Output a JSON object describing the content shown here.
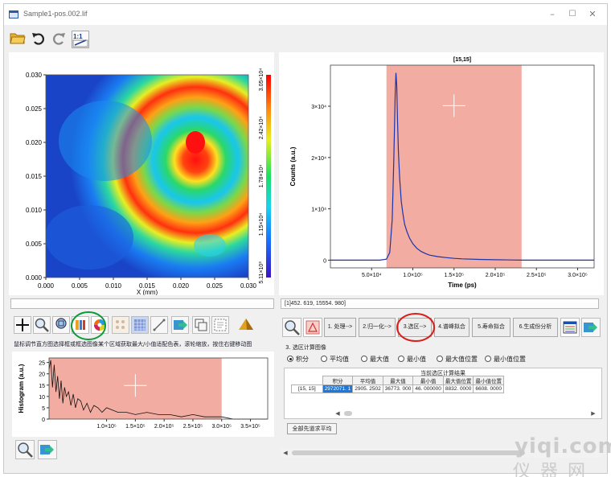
{
  "window": {
    "title": "Sample1-pos.002.lif"
  },
  "toolbar": {
    "tools": [
      "open-folder-icon",
      "undo-icon",
      "redo-icon",
      "one-to-one-icon"
    ]
  },
  "image_panel": {
    "x_label": "X (mm)",
    "x_ticks": [
      "0.000",
      "0.005",
      "0.010",
      "0.015",
      "0.020",
      "0.025",
      "0.030"
    ],
    "y_ticks": [
      "0.030",
      "0.025",
      "0.020",
      "0.015",
      "0.010",
      "0.005",
      "0.000"
    ],
    "colorbar_ticks": [
      "3.05×10⁴",
      "2.42×10⁴",
      "1.78×10⁴",
      "1.15×10⁴",
      "5.11×10³"
    ],
    "colors": {
      "max": "#ff0000",
      "mid": "#00d000",
      "min": "#3a14c0"
    }
  },
  "decay_panel": {
    "title": "[15,15]",
    "x_label": "Time (ps)",
    "y_label": "Counts (a.u.)",
    "x_ticks": [
      "5.0×10⁴",
      "1.0×10⁵",
      "1.5×10⁵",
      "2.0×10⁵",
      "2.5×10⁵",
      "3.0×10⁵"
    ],
    "y_ticks": [
      "0",
      "1×10⁴",
      "2×10⁴",
      "3×10⁴"
    ],
    "status_text": "[1]452. 619, 15554. 980]",
    "region_color": "#f2aca1",
    "curve_color": "#1b34a8"
  },
  "chart_data": [
    {
      "type": "line",
      "title": "[15,15]",
      "xlabel": "Time (ps)",
      "ylabel": "Counts (a.u.)",
      "xlim": [
        0,
        320000
      ],
      "ylim": [
        -1500,
        38000
      ],
      "x_ticks": [
        50000,
        100000,
        150000,
        200000,
        250000,
        300000
      ],
      "y_ticks": [
        0,
        10000,
        20000,
        30000
      ],
      "highlight_range": [
        68000,
        232000
      ],
      "series": [
        {
          "x": [
            0,
            60000,
            68000,
            72000,
            75000,
            77000,
            78500,
            79500,
            80500,
            81500,
            82500,
            84000,
            86000,
            88000,
            90000,
            93000,
            96000,
            100000,
            105000,
            110000,
            115000,
            120000,
            130000,
            140000,
            150000,
            160000,
            180000,
            200000,
            232000,
            260000,
            320000
          ],
          "y": [
            0,
            0,
            200,
            1500,
            8000,
            20000,
            32000,
            36500,
            34000,
            27000,
            21000,
            16000,
            11500,
            9000,
            7000,
            5500,
            4300,
            3200,
            2300,
            1700,
            1300,
            1000,
            700,
            500,
            350,
            250,
            150,
            80,
            0,
            0,
            0
          ]
        }
      ]
    },
    {
      "type": "line",
      "xlabel": "",
      "ylabel": "Histogram (a.u.)",
      "xlim": [
        0,
        380000
      ],
      "ylim": [
        0,
        27
      ],
      "x_ticks": [
        100000,
        150000,
        200000,
        250000,
        300000,
        350000
      ],
      "y_ticks": [
        0,
        5,
        10,
        15,
        20,
        25
      ],
      "highlight_range": [
        0,
        300000
      ],
      "series": [
        {
          "x": [
            0,
            3000,
            6000,
            9000,
            12000,
            15000,
            18000,
            21000,
            24000,
            27000,
            30000,
            34000,
            38000,
            42000,
            46000,
            50000,
            55000,
            60000,
            66000,
            72000,
            78000,
            85000,
            92000,
            100000,
            110000,
            120000,
            135000,
            150000,
            170000,
            190000,
            210000,
            230000,
            250000,
            270000,
            290000,
            300000,
            320000,
            340000,
            360000,
            380000
          ],
          "y": [
            22,
            26,
            14,
            24,
            12,
            19,
            9,
            17,
            7,
            14,
            10,
            12,
            6,
            11,
            5,
            9,
            8,
            4,
            7,
            3,
            6,
            5,
            3,
            5,
            4,
            3,
            3,
            2,
            3,
            2,
            2,
            1,
            2,
            1,
            1,
            1,
            0,
            0,
            0,
            0
          ]
        }
      ]
    }
  ],
  "tool_strip": {
    "tools": [
      "crosshair-icon",
      "zoom-icon",
      "zoom-fit-icon",
      "color-map-icon",
      "color-wheel-icon",
      "pattern-icon",
      "texture-icon",
      "line-profile-icon",
      "export-image-icon",
      "copy-icon",
      "select-region-icon",
      "surface-icon"
    ]
  },
  "hint_text": "鼠标调节直方图选择框或框选图像某个区域获取最大/小值适配色表，滚轮缩放，按住右键移动图",
  "workflow": {
    "steps": [
      "1. 处理-->",
      "2.归一化-->",
      "3.选区-->",
      "4.谱峰拟合",
      "5.寿命拟合",
      "6.生成份分析"
    ]
  },
  "calc": {
    "title": "3. 选区计算图像",
    "options": [
      "积分",
      "平均值",
      "最大值",
      "最小值",
      "最大值位置",
      "最小值位置"
    ],
    "selected": 0,
    "table_caption": "当前选区计算结果",
    "columns": [
      "积分",
      "平均值",
      "最大值",
      "最小值",
      "最大值位置",
      "最小值位置"
    ],
    "rows": [
      {
        "label": "[15, 15]",
        "cells": [
          "2972071. 1",
          "2905. 2502",
          "36773. 000",
          "46. 000000",
          "8832. 0000",
          "6608. 0000"
        ]
      }
    ],
    "button_label": "全部先道求平均"
  },
  "watermark": {
    "line1": "yiqi.com",
    "line2": "仪器网"
  }
}
